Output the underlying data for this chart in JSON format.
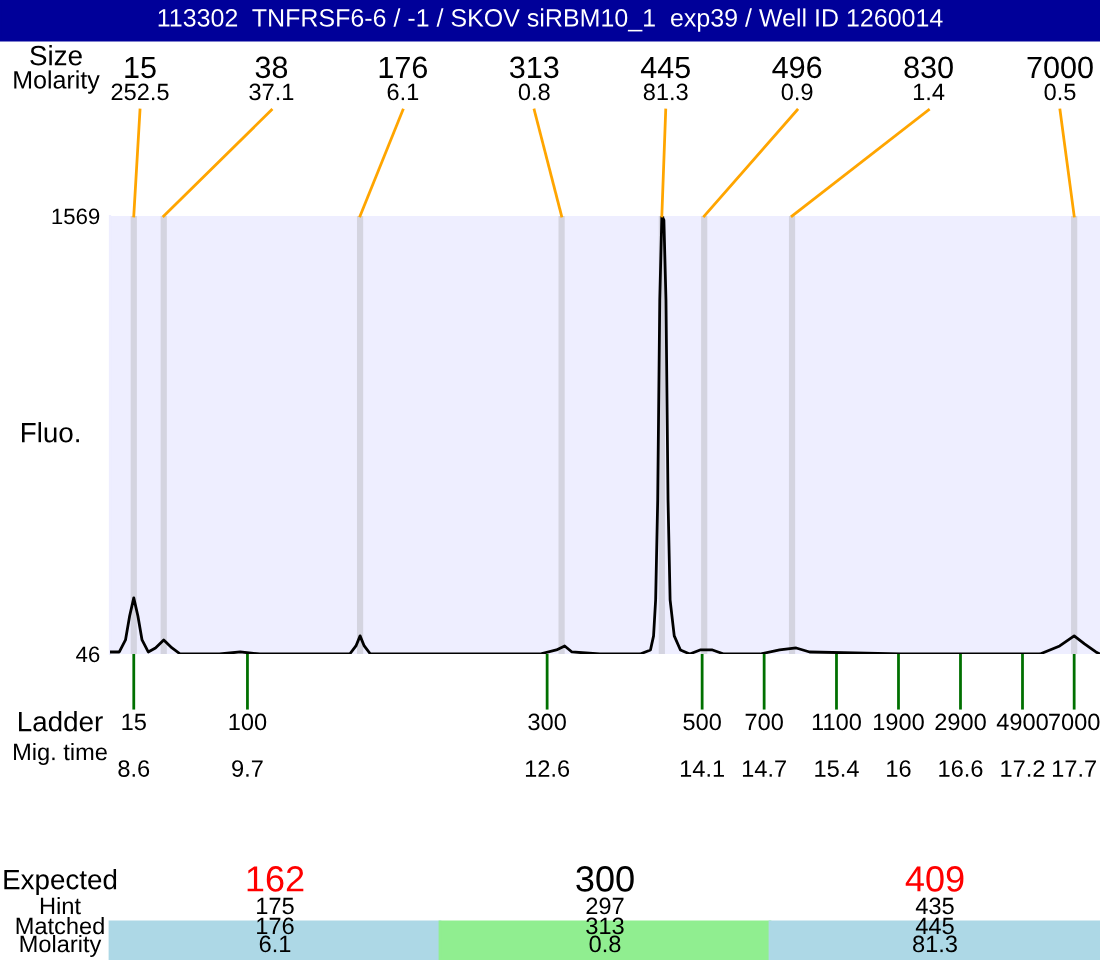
{
  "chart_data": {
    "type": "line",
    "title": "113302  TNFRSF6-6 / -1 / SKOV siRBM10_1  exp39 / Well ID 1260014",
    "ylabel": "Fluo.",
    "x": [
      8.37,
      8.46,
      8.52,
      8.56,
      8.6,
      8.64,
      8.68,
      8.74,
      8.81,
      8.89,
      8.97,
      9.05,
      9.43,
      9.63,
      9.82,
      10.69,
      10.75,
      10.79,
      10.83,
      10.89,
      12.53,
      12.69,
      12.77,
      12.84,
      13.11,
      13.5,
      13.6,
      13.63,
      13.65,
      13.67,
      13.69,
      13.71,
      13.73,
      13.75,
      13.77,
      13.79,
      13.83,
      13.89,
      13.98,
      14.08,
      14.2,
      14.31,
      14.66,
      14.85,
      15.01,
      15.14,
      16.02,
      16.6,
      17.37,
      17.56,
      17.7,
      17.8,
      17.91,
      17.95
    ],
    "values": [
      53,
      53,
      95,
      178,
      241,
      178,
      95,
      53,
      67,
      95,
      67,
      46,
      46,
      53,
      46,
      46,
      74,
      109,
      74,
      46,
      46,
      60,
      74,
      53,
      46,
      46,
      60,
      109,
      234,
      581,
      1277,
      1569,
      1555,
      1277,
      581,
      234,
      109,
      60,
      46,
      60,
      60,
      46,
      46,
      60,
      67,
      53,
      46,
      46,
      46,
      74,
      109,
      81,
      53,
      46
    ],
    "color": "#000000",
    "xlim": [
      8.37,
      17.95
    ],
    "xticks": [
      8.6,
      9.7,
      12.6,
      14.1,
      14.7,
      15.4,
      16,
      16.6,
      17.2,
      17.7
    ],
    "xlabel": "Mig. time",
    "ylim": [
      46,
      1569
    ],
    "yticks": [
      46,
      1569
    ],
    "grid": false,
    "marker": "none",
    "line_style": "solid",
    "bands": [
      {
        "axis": "x",
        "from": 8.57,
        "to": 8.63,
        "color": "#d4d4e0"
      },
      {
        "axis": "x",
        "from": 8.86,
        "to": 8.92,
        "color": "#d4d4e0"
      },
      {
        "axis": "x",
        "from": 10.76,
        "to": 10.82,
        "color": "#d4d4e0"
      },
      {
        "axis": "x",
        "from": 12.71,
        "to": 12.77,
        "color": "#d4d4e0"
      },
      {
        "axis": "x",
        "from": 13.68,
        "to": 13.74,
        "color": "#d4d4e0"
      },
      {
        "axis": "x",
        "from": 14.09,
        "to": 14.15,
        "color": "#d4d4e0"
      },
      {
        "axis": "x",
        "from": 14.94,
        "to": 15.0,
        "color": "#d4d4e0"
      },
      {
        "axis": "x",
        "from": 17.67,
        "to": 17.73,
        "color": "#d4d4e0"
      }
    ],
    "annotations": [
      "Size\nMolarity",
      "15\n252.5",
      "38\n37.1",
      "176\n6.1",
      "313\n0.8",
      "445\n81.3",
      "496\n0.9",
      "830\n1.4",
      "7000\n0.5",
      "Ladder",
      "15",
      "100",
      "300",
      "500",
      "700",
      "1100",
      "1900",
      "2900",
      "4900",
      "7000",
      "Expected\nHint\nMatched\nMolarity",
      "162\n175\n176\n6.1",
      "300\n297\n313\n0.8",
      "409\n435\n445\n81.3"
    ]
  }
}
